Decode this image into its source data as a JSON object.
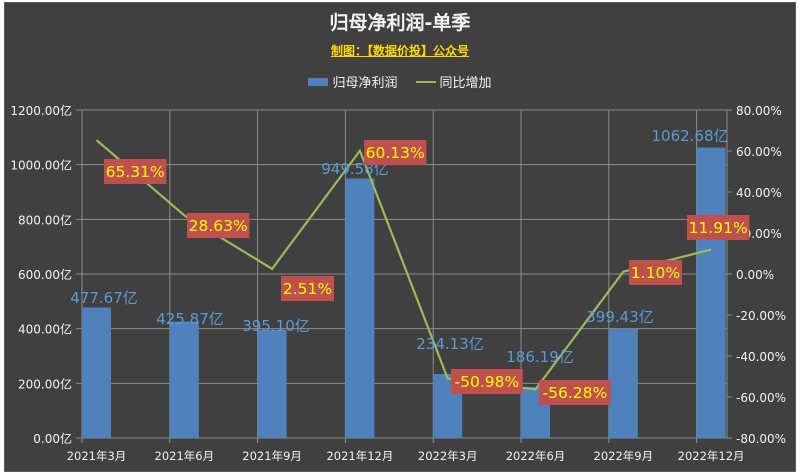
{
  "chart": {
    "title": "归母净利润-单季",
    "subtitle": "制图：【数据价投】公众号",
    "legend": [
      {
        "label": "归母净利润",
        "type": "bar",
        "color": "#4f81bd"
      },
      {
        "label": "同比增加",
        "type": "line",
        "color": "#9bbb59"
      }
    ]
  },
  "colors": {
    "background": "#404040",
    "grid": "#8c8c8c",
    "axis_text": "#f2f2f2",
    "bar": "#4f81bd",
    "bar_label": "#5b9bd5",
    "line": "#9bbb59",
    "pct_label_bg": "#c0504d",
    "pct_label_text": "#ffff00"
  },
  "chart_data": {
    "type": "bar+line",
    "title": "归母净利润-单季",
    "subtitle": "制图：【数据价投】公众号",
    "categories": [
      "2021年3月",
      "2021年6月",
      "2021年9月",
      "2021年12月",
      "2022年3月",
      "2022年6月",
      "2022年9月",
      "2022年12月"
    ],
    "series": [
      {
        "name": "归母净利润",
        "type": "bar",
        "axis": "left",
        "unit": "亿",
        "values": [
          477.67,
          425.87,
          395.1,
          949.58,
          234.13,
          186.19,
          399.43,
          1062.68
        ],
        "labels": [
          "477.67亿",
          "425.87亿",
          "395.10亿",
          "949.58亿",
          "234.13亿",
          "186.19亿",
          "399.43亿",
          "1062.68亿"
        ]
      },
      {
        "name": "同比增加",
        "type": "line",
        "axis": "right",
        "unit": "%",
        "values": [
          65.31,
          28.63,
          2.51,
          60.13,
          -50.98,
          -56.28,
          1.1,
          11.91
        ],
        "labels": [
          "65.31%",
          "28.63%",
          "2.51%",
          "60.13%",
          "-50.98%",
          "-56.28%",
          "1.10%",
          "11.91%"
        ]
      }
    ],
    "left_axis": {
      "ylim": [
        0,
        1200
      ],
      "ticks": [
        "0.00亿",
        "200.00亿",
        "400.00亿",
        "600.00亿",
        "800.00亿",
        "1000.00亿",
        "1200.00亿"
      ]
    },
    "right_axis": {
      "ylim": [
        -80,
        80
      ],
      "ticks": [
        "-80.00%",
        "-60.00%",
        "-40.00%",
        "-20.00%",
        "0.00%",
        "20.00%",
        "40.00%",
        "60.00%",
        "80.00%"
      ]
    },
    "grid": true,
    "legend_position": "top"
  }
}
